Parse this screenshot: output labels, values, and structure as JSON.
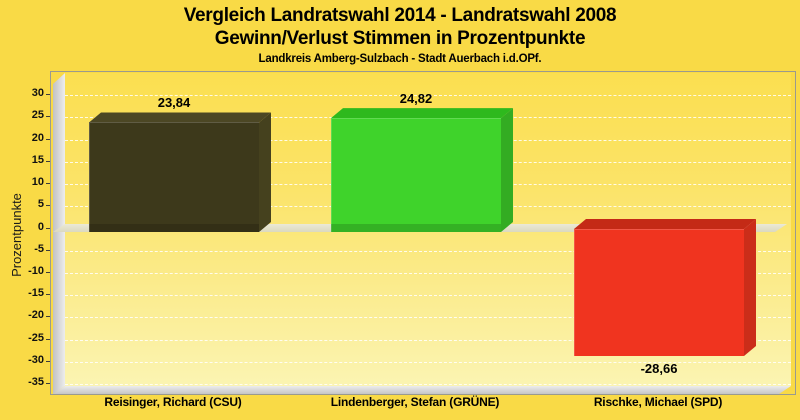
{
  "header": {
    "title_line1": "Vergleich Landratswahl 2014 - Landratswahl 2008",
    "title_line2": "Gewinn/Verlust Stimmen in Prozentpunkte",
    "subtitle": "Landkreis Amberg-Sulzbach - Stadt Auerbach i.d.OPf."
  },
  "chart_data": {
    "type": "bar",
    "style": "3d",
    "title": "Vergleich Landratswahl 2014 - Landratswahl 2008",
    "subtitle": "Gewinn/Verlust Stimmen in Prozentpunkte",
    "caption": "Landkreis Amberg-Sulzbach - Stadt Auerbach i.d.OPf.",
    "xlabel": "",
    "ylabel": "Prozentpunkte",
    "ylim": [
      -35,
      30
    ],
    "yticks": [
      30,
      25,
      20,
      15,
      10,
      5,
      0,
      -5,
      -10,
      -15,
      -20,
      -25,
      -30,
      -35
    ],
    "grid": "horizontal-dashed",
    "legend": false,
    "categories": [
      "Reisinger, Richard (CSU)",
      "Lindenberger, Stefan (GRÜNE)",
      "Rischke, Michael (SPD)"
    ],
    "values": [
      23.84,
      24.82,
      -28.66
    ],
    "value_labels": [
      "23,84",
      "24,82",
      "-28,66"
    ],
    "bars": [
      {
        "category": "Reisinger, Richard (CSU)",
        "value": 23.84,
        "value_label": "23,84",
        "color_front": "#3D391B",
        "color_top": "#4C4724",
        "color_side": "#45411E"
      },
      {
        "category": "Lindenberger, Stefan (GRÜNE)",
        "value": 24.82,
        "value_label": "24,82",
        "color_front": "#3FD32B",
        "color_top": "#2EB91D",
        "color_side": "#33AC22"
      },
      {
        "category": "Rischke, Michael (SPD)",
        "value": -28.66,
        "value_label": "-28,66",
        "color_front": "#F0341F",
        "color_top": "#C42A16",
        "color_side": "#CB2D19"
      }
    ]
  },
  "colors": {
    "page_background": "#F9DA46",
    "plot_gradient_top": "#FBDF50",
    "plot_gradient_bottom": "#FBF4B2",
    "wall_gray": "#D5D5D5",
    "zero_plane": "#E3E1CC",
    "gridline": "#FFFFFF",
    "text": "#000000"
  }
}
